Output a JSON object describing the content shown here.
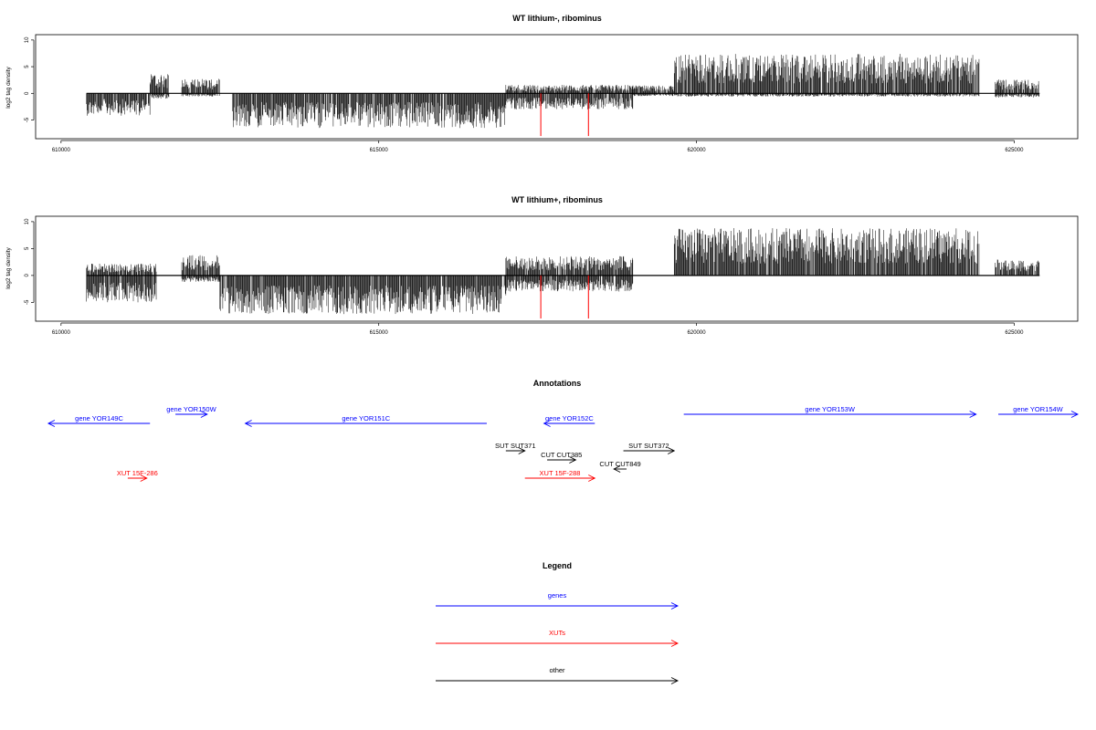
{
  "chart_data": [
    {
      "type": "bar",
      "title": "WT lithium-, ribominus",
      "ylabel": "log2 tag density",
      "xlim": [
        609600,
        626000
      ],
      "ylim": [
        -8.5,
        11
      ],
      "x_ticks": [
        610000,
        615000,
        620000,
        625000
      ],
      "y_ticks": [
        -5,
        0,
        5,
        10
      ],
      "segments": [
        {
          "from": 610400,
          "to": 611400,
          "minus_amp": 4.2,
          "plus_amp": 0
        },
        {
          "from": 611400,
          "to": 611700,
          "minus_amp": 1.0,
          "plus_amp": 3.6
        },
        {
          "from": 611900,
          "to": 612500,
          "minus_amp": 0.6,
          "plus_amp": 2.8
        },
        {
          "from": 612700,
          "to": 617000,
          "minus_amp": 6.5,
          "plus_amp": 0
        },
        {
          "from": 617000,
          "to": 619000,
          "minus_amp": 3.0,
          "plus_amp": 1.6
        },
        {
          "from": 619000,
          "to": 619650,
          "minus_amp": 0.5,
          "plus_amp": 1.5
        },
        {
          "from": 619650,
          "to": 624450,
          "minus_amp": 0.6,
          "plus_amp": 7.4
        },
        {
          "from": 624700,
          "to": 625400,
          "minus_amp": 0.8,
          "plus_amp": 2.6
        }
      ],
      "highlight_x": [
        617550,
        618300
      ],
      "highlight_y": -8.0,
      "highlight_color": "#ff0000"
    },
    {
      "type": "bar",
      "title": "WT lithium+, ribominus",
      "ylabel": "log2 tag density",
      "xlim": [
        609600,
        626000
      ],
      "ylim": [
        -8.5,
        11
      ],
      "x_ticks": [
        610000,
        615000,
        620000,
        625000
      ],
      "y_ticks": [
        -5,
        0,
        5,
        10
      ],
      "segments": [
        {
          "from": 610400,
          "to": 611500,
          "minus_amp": 5.0,
          "plus_amp": 2.2
        },
        {
          "from": 611900,
          "to": 612500,
          "minus_amp": 1.2,
          "plus_amp": 3.8
        },
        {
          "from": 612500,
          "to": 617000,
          "minus_amp": 7.2,
          "plus_amp": 0
        },
        {
          "from": 617000,
          "to": 619000,
          "minus_amp": 3.0,
          "plus_amp": 3.6
        },
        {
          "from": 619650,
          "to": 624450,
          "minus_amp": 0,
          "plus_amp": 8.8
        },
        {
          "from": 624700,
          "to": 625400,
          "minus_amp": 0,
          "plus_amp": 3.0
        }
      ],
      "highlight_x": [
        617550,
        618300
      ],
      "highlight_y": -8.0,
      "highlight_color": "#ff0000"
    }
  ],
  "annotations": {
    "title": "Annotations",
    "xlim": [
      609600,
      626000
    ],
    "features": [
      {
        "label": "gene YOR149C",
        "from": 611400,
        "to": 609800,
        "row": 0,
        "color": "#0000ff"
      },
      {
        "label": "gene YOR150W",
        "from": 611800,
        "to": 612300,
        "row": -1,
        "color": "#0000ff"
      },
      {
        "label": "gene YOR151C",
        "from": 616700,
        "to": 612900,
        "row": 0,
        "color": "#0000ff"
      },
      {
        "label": "gene YOR152C",
        "from": 618400,
        "to": 617600,
        "row": 0,
        "color": "#0000ff"
      },
      {
        "label": "gene YOR153W",
        "from": 619800,
        "to": 624400,
        "row": -1,
        "color": "#0000ff"
      },
      {
        "label": "gene YOR154W",
        "from": 624750,
        "to": 626000,
        "row": -1,
        "color": "#0000ff"
      },
      {
        "label": "SUT SUT371",
        "from": 617000,
        "to": 617300,
        "row": 2,
        "color": "#000000"
      },
      {
        "label": "SUT SUT372",
        "from": 618850,
        "to": 619650,
        "row": 2,
        "color": "#000000"
      },
      {
        "label": "CUT CUT385",
        "from": 617650,
        "to": 618100,
        "row": 3,
        "color": "#000000"
      },
      {
        "label": "CUT CUT849",
        "from": 618900,
        "to": 618700,
        "row": 4,
        "color": "#000000"
      },
      {
        "label": "XUT 15F-286",
        "from": 611050,
        "to": 611350,
        "row": 5,
        "color": "#ff0000"
      },
      {
        "label": "XUT 15F-288",
        "from": 617300,
        "to": 618400,
        "row": 5,
        "color": "#ff0000"
      }
    ]
  },
  "legend": {
    "title": "Legend",
    "items": [
      {
        "label": "genes",
        "color": "#0000ff"
      },
      {
        "label": "XUTs",
        "color": "#ff0000"
      },
      {
        "label": "other",
        "color": "#000000"
      }
    ]
  }
}
